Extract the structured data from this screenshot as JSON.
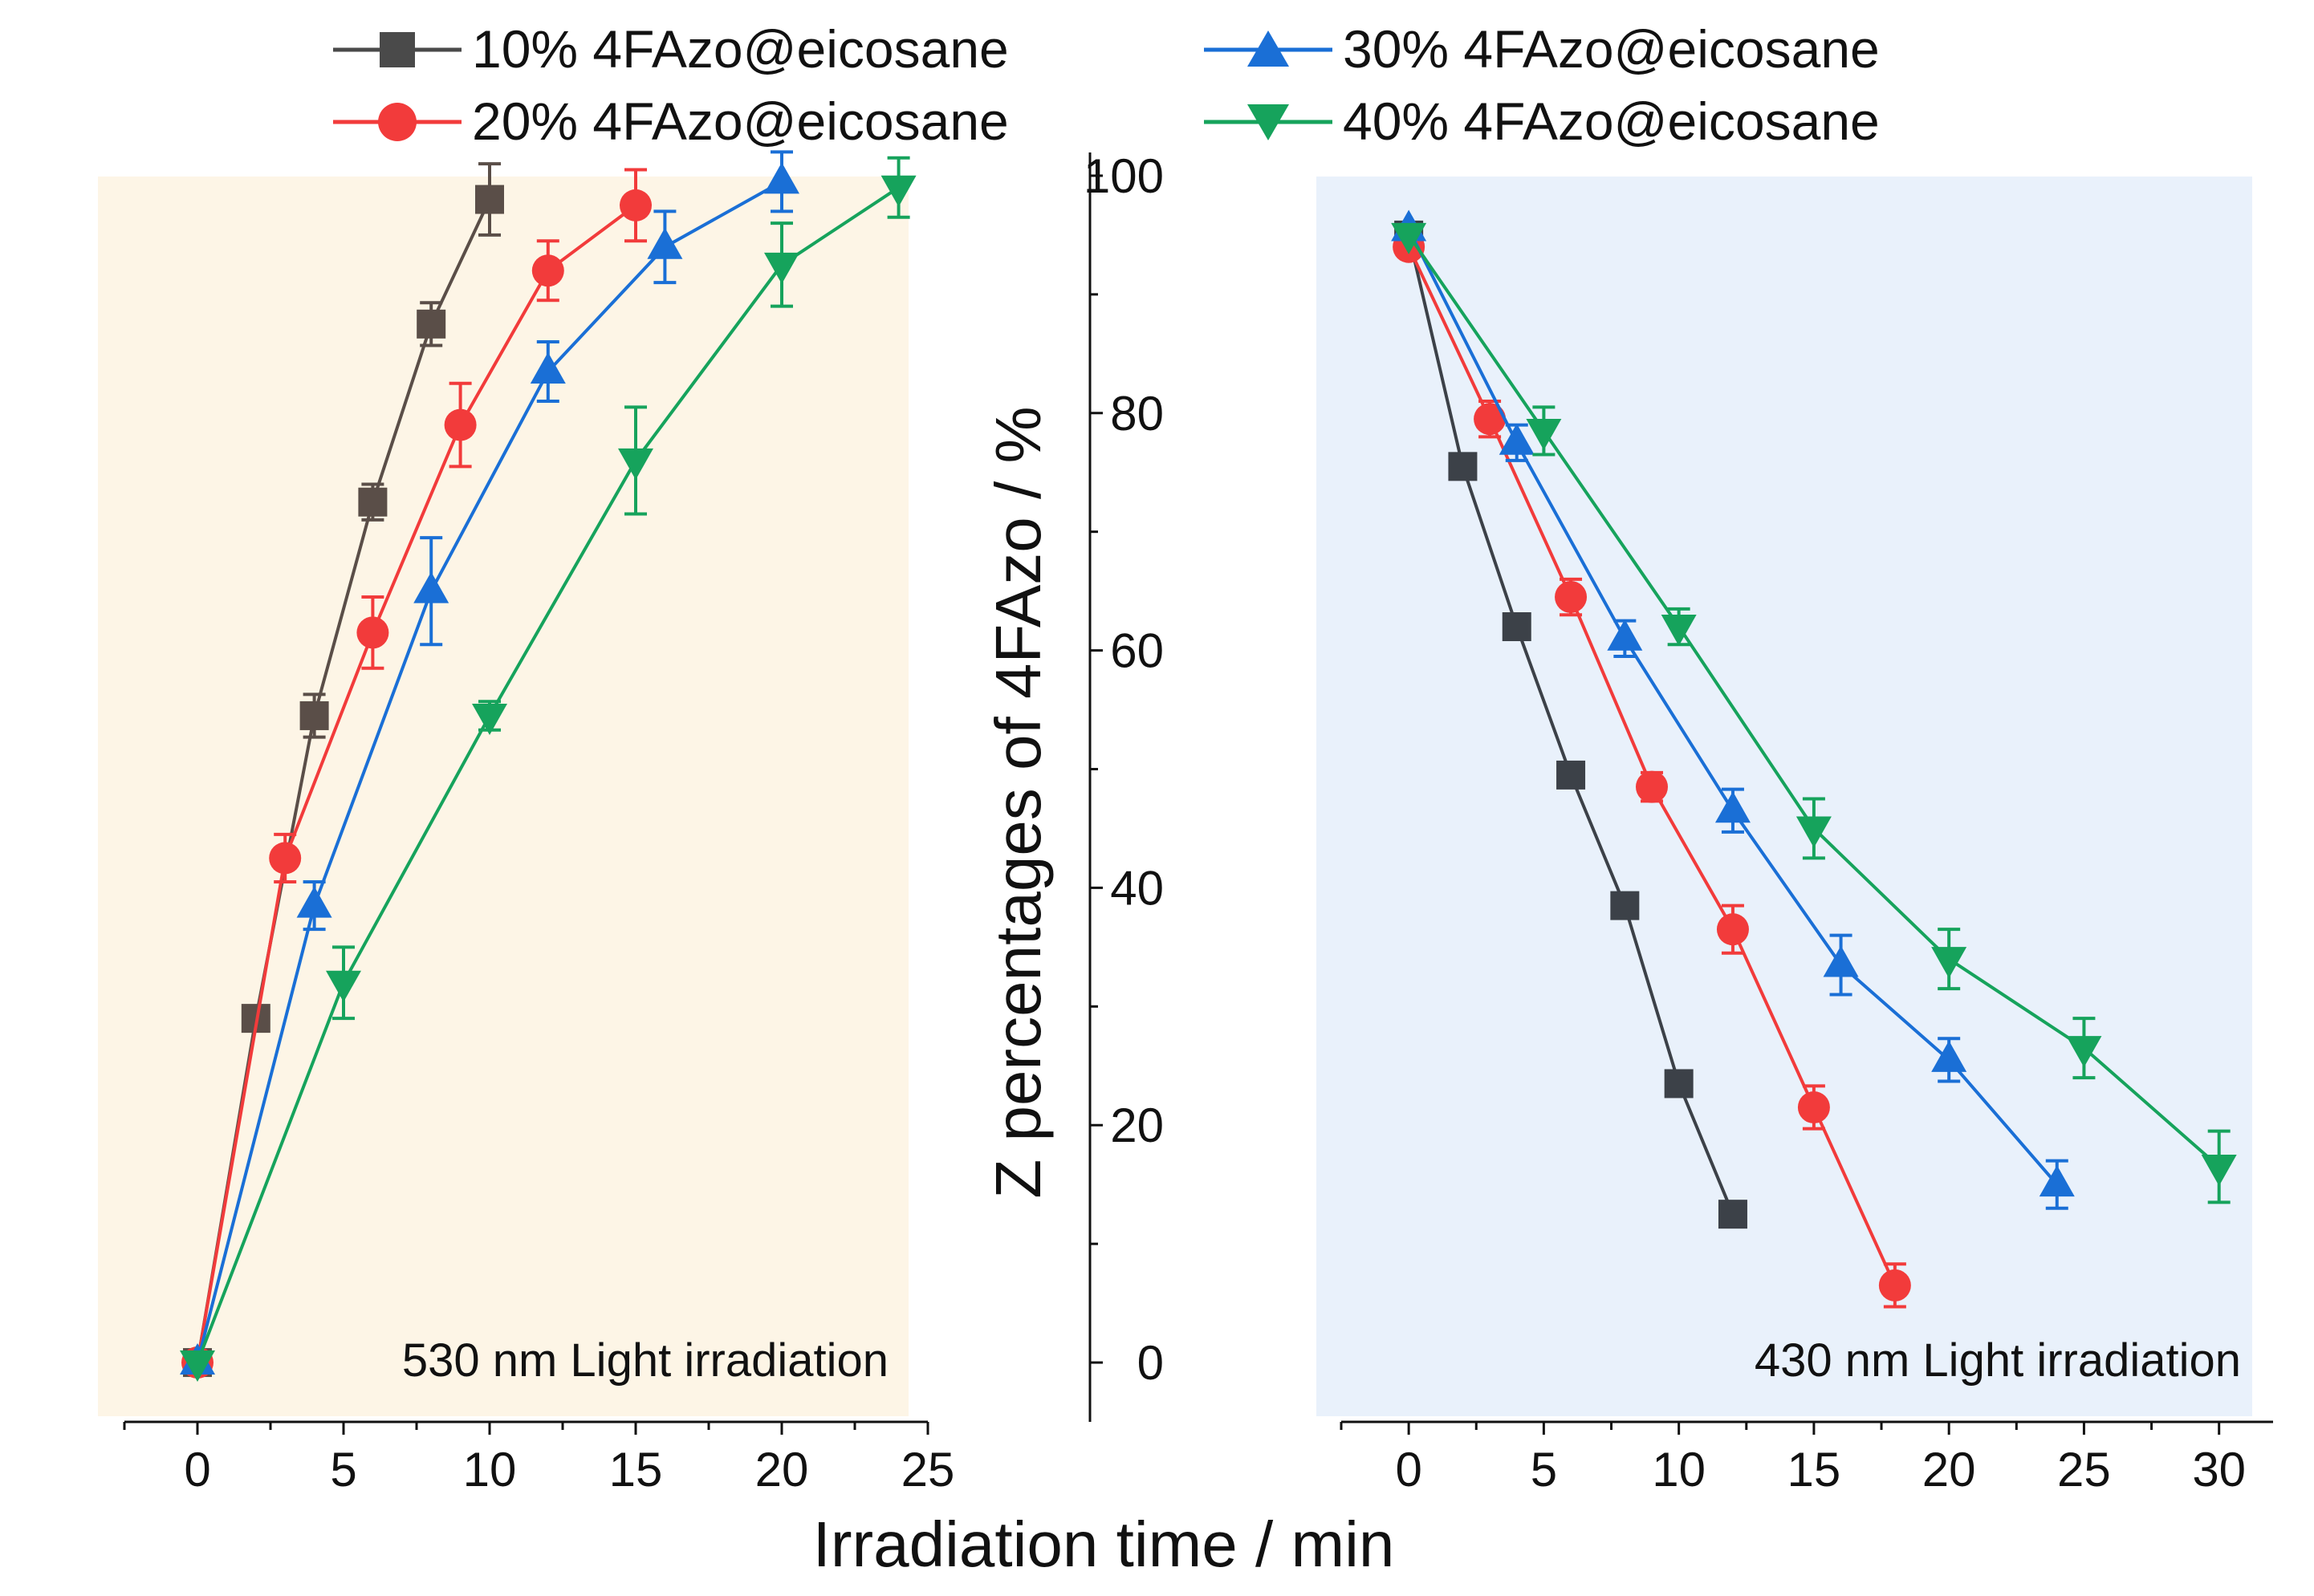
{
  "legend": {
    "items": [
      {
        "label": "10% 4FAzo@eicosane",
        "color": "#4a4a4a",
        "marker": "square"
      },
      {
        "label": "30% 4FAzo@eicosane",
        "color": "#1a6fd6",
        "marker": "triangle-up"
      },
      {
        "label": "20% 4FAzo@eicosane",
        "color": "#f23b3b",
        "marker": "circle"
      },
      {
        "label": "40% 4FAzo@eicosane",
        "color": "#16a35c",
        "marker": "triangle-down"
      }
    ]
  },
  "chart_data": [
    {
      "type": "line",
      "panel": "left",
      "annotation": "530 nm Light irradiation",
      "background": "#fdf5e6",
      "xlim": [
        -2.5,
        25
      ],
      "ylim": [
        -5,
        105
      ],
      "xticks": [
        0,
        5,
        10,
        15,
        20,
        25
      ],
      "xlabel": "",
      "ylabel": "",
      "series": [
        {
          "name": "10% 4FAzo@eicosane",
          "color": "#5a4e48",
          "marker": "square",
          "x": [
            0,
            2,
            4,
            6,
            8,
            10
          ],
          "y": [
            0,
            29,
            54.5,
            72.5,
            87.5,
            98
          ],
          "err": [
            0,
            1,
            1.8,
            1.5,
            1.8,
            3
          ]
        },
        {
          "name": "20% 4FAzo@eicosane",
          "color": "#f23b3b",
          "marker": "circle",
          "x": [
            0,
            3,
            9,
            6,
            12,
            15
          ],
          "y": [
            0,
            42.5,
            79,
            61.5,
            92,
            97.5
          ],
          "err": [
            0,
            2,
            3.5,
            3,
            2.5,
            3
          ]
        },
        {
          "name": "30% 4FAzo@eicosane",
          "color": "#1a6fd6",
          "marker": "triangle-up",
          "x": [
            0,
            4,
            8,
            12,
            16,
            20
          ],
          "y": [
            0,
            38.5,
            65,
            83.5,
            94,
            99.5
          ],
          "err": [
            0,
            2,
            4.5,
            2.5,
            3,
            2.5
          ]
        },
        {
          "name": "40% 4FAzo@eicosane",
          "color": "#16a35c",
          "marker": "triangle-down",
          "x": [
            0,
            5,
            10,
            15,
            20,
            24
          ],
          "y": [
            0,
            32,
            54.5,
            76,
            92.5,
            99
          ],
          "err": [
            0,
            3,
            1.2,
            4.5,
            3.5,
            2.5
          ]
        }
      ]
    },
    {
      "type": "line",
      "panel": "right",
      "annotation": "430 nm Light irradiation",
      "background": "#e9f1fb",
      "xlim": [
        -2.5,
        32
      ],
      "ylim": [
        -5,
        105
      ],
      "xticks": [
        0,
        5,
        10,
        15,
        20,
        25,
        30
      ],
      "yticks": [
        0,
        20,
        40,
        60,
        80,
        100
      ],
      "xlabel": "Irradiation time / min",
      "ylabel": "Z percentages of 4FAzo / %",
      "series": [
        {
          "name": "10% 4FAzo@eicosane",
          "color": "#3c4148",
          "marker": "square",
          "x": [
            0,
            2,
            4,
            6,
            8,
            10,
            12
          ],
          "y": [
            95,
            75.5,
            62,
            49.5,
            38.5,
            23.5,
            12.5
          ],
          "err": [
            0,
            1,
            1,
            1,
            1,
            1,
            1
          ]
        },
        {
          "name": "20% 4FAzo@eicosane",
          "color": "#f23b3b",
          "marker": "circle",
          "x": [
            0,
            3,
            6,
            9,
            12,
            15,
            18
          ],
          "y": [
            94,
            79.5,
            64.5,
            48.5,
            36.5,
            21.5,
            6.5
          ],
          "err": [
            0,
            1.5,
            1.5,
            1.2,
            2,
            1.8,
            1.8
          ]
        },
        {
          "name": "30% 4FAzo@eicosane",
          "color": "#1a6fd6",
          "marker": "triangle-up",
          "x": [
            0,
            4,
            8,
            12,
            16,
            20,
            24
          ],
          "y": [
            95.5,
            77.5,
            61,
            46.5,
            33.5,
            25.5,
            15
          ],
          "err": [
            0,
            1.5,
            1.5,
            1.8,
            2.5,
            1.8,
            2
          ]
        },
        {
          "name": "40% 4FAzo@eicosane",
          "color": "#16a35c",
          "marker": "triangle-down",
          "x": [
            0,
            5,
            10,
            15,
            20,
            25,
            30
          ],
          "y": [
            95,
            78.5,
            62,
            45,
            34,
            26.5,
            16.5
          ],
          "err": [
            0,
            2,
            1.5,
            2.5,
            2.5,
            2.5,
            3
          ]
        }
      ]
    }
  ]
}
